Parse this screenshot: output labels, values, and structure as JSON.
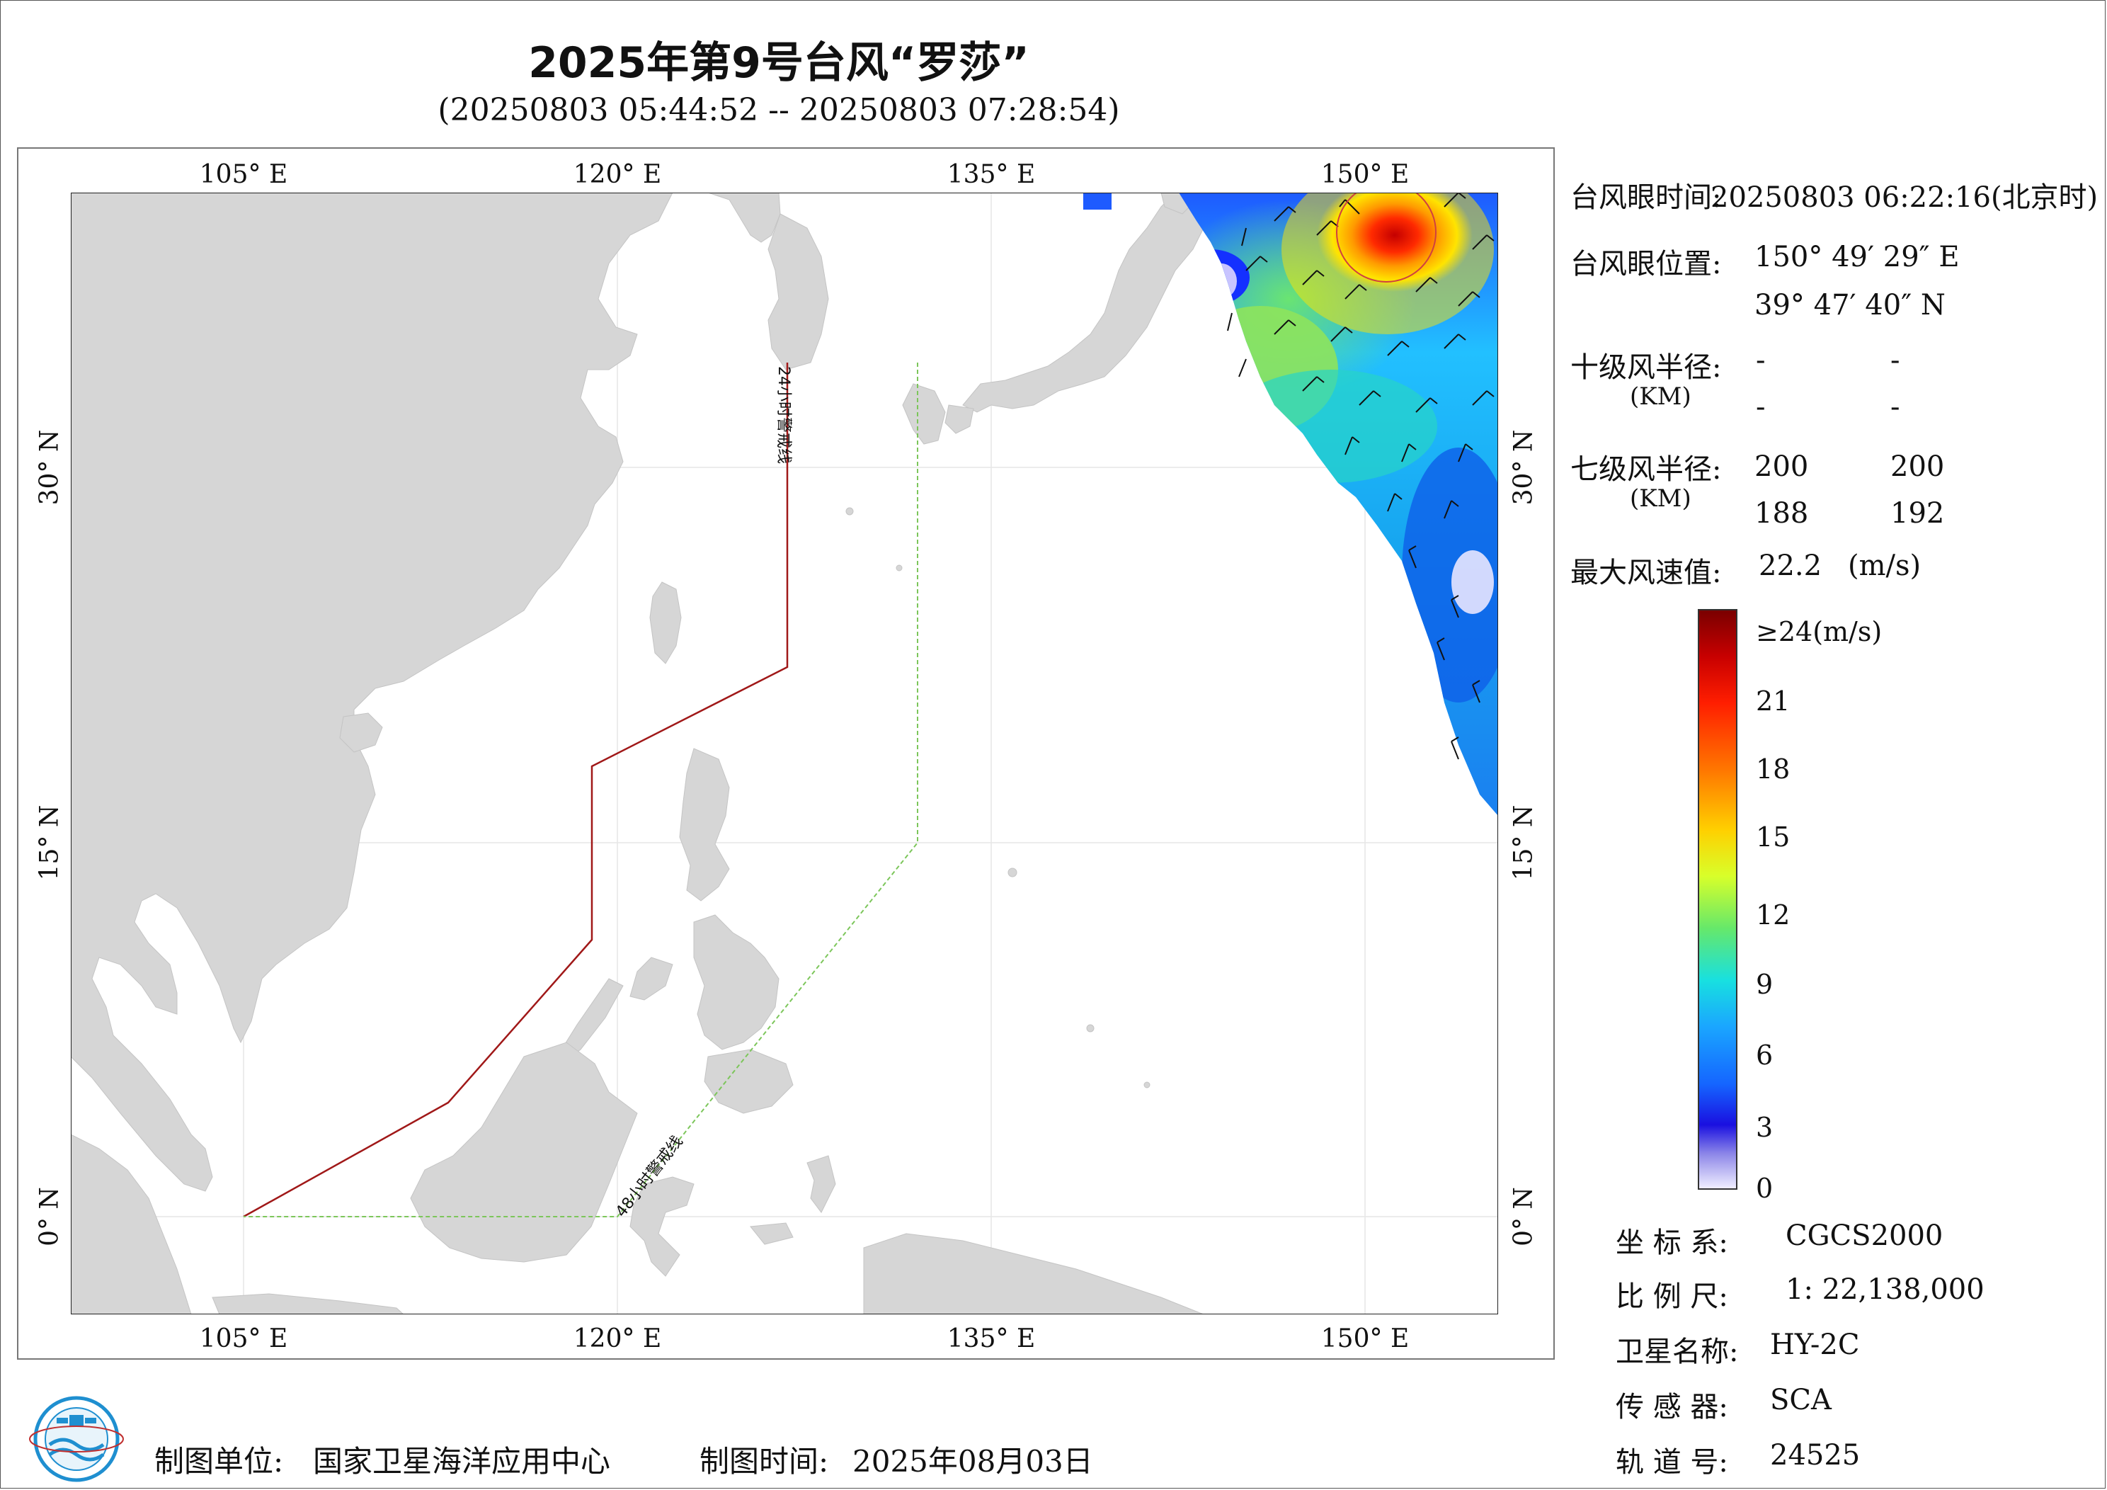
{
  "title": "2025年第9号台风“罗莎”",
  "subtitle": "(20250803 05:44:52 -- 20250803 07:28:54)",
  "map": {
    "lon_ticks": [
      "105° E",
      "120° E",
      "135° E",
      "150° E"
    ],
    "lat_ticks": [
      "30° N",
      "15° N",
      "0° N"
    ],
    "lines": {
      "line24": "24小时警戒线",
      "line48": "48小时警戒线"
    },
    "colors": {
      "land": "#d6d6d6",
      "sea": "#ffffff",
      "line24": "#a01818",
      "line48": "#7cc65a"
    }
  },
  "info": {
    "eye_time_label": "台风眼时间:",
    "eye_time_value": "20250803 06:22:16(北京时)",
    "eye_pos_label": "台风眼位置:",
    "eye_lon": "150° 49′ 29″ E",
    "eye_lat": "39° 47′ 40″ N",
    "r10_label": "十级风半径:",
    "r10_unit": "(KM)",
    "r10_values": [
      "-",
      "-",
      "-",
      "-"
    ],
    "r7_label": "七级风半径:",
    "r7_unit": "(KM)",
    "r7_values": [
      "200",
      "200",
      "188",
      "192"
    ],
    "max_wind_label": "最大风速值:",
    "max_wind_value": "22.2",
    "max_wind_unit": "(m/s)"
  },
  "colorbar": {
    "labels": [
      "≥24(m/s)",
      "21",
      "18",
      "15",
      "12",
      "9",
      "6",
      "3",
      "0"
    ]
  },
  "meta": {
    "crs_label": "坐 标 系:",
    "crs_value": "CGCS2000",
    "scale_label": "比 例 尺:",
    "scale_value": "1: 22,138,000",
    "sat_label": "卫星名称:",
    "sat_value": "HY-2C",
    "sensor_label": "传 感 器:",
    "sensor_value": "SCA",
    "orbit_label": "轨 道 号:",
    "orbit_value": "24525"
  },
  "footer": {
    "org_label": "制图单位:",
    "org_value": "国家卫星海洋应用中心",
    "date_label": "制图时间:",
    "date_value": "2025年08月03日"
  }
}
